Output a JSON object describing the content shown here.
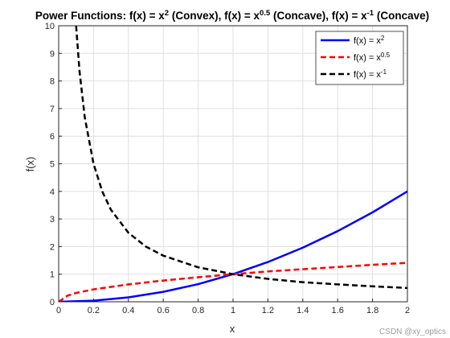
{
  "chart_data": {
    "type": "line",
    "title": {
      "p1": "Power Functions: f(x) = x",
      "s1": "2",
      "p2": " (Convex), f(x) = x",
      "s2": "0.5",
      "p3": " (Concave), f(x) = x",
      "s3": "-1",
      "p4": " (Concave)"
    },
    "xlabel": "x",
    "ylabel": "f(x)",
    "xlim": [
      0,
      2
    ],
    "ylim": [
      0,
      10
    ],
    "xticks": [
      "0",
      "0.2",
      "0.4",
      "0.6",
      "0.8",
      "1",
      "1.2",
      "1.4",
      "1.6",
      "1.8",
      "2"
    ],
    "yticks": [
      "0",
      "1",
      "2",
      "3",
      "4",
      "5",
      "6",
      "7",
      "8",
      "9",
      "10"
    ],
    "grid": true,
    "legend_position": "top-right",
    "series": [
      {
        "name": {
          "base": "f(x) = x",
          "sup": "2"
        },
        "color": "#0000ff",
        "style": "solid",
        "x": [
          0,
          0.2,
          0.4,
          0.6,
          0.8,
          1.0,
          1.2,
          1.4,
          1.6,
          1.8,
          2.0
        ],
        "y": [
          0,
          0.04,
          0.16,
          0.36,
          0.64,
          1.0,
          1.44,
          1.96,
          2.56,
          3.24,
          4.0
        ]
      },
      {
        "name": {
          "base": "f(x) = x",
          "sup": "0.5"
        },
        "color": "#ff0000",
        "style": "dashed",
        "x": [
          0,
          0.05,
          0.1,
          0.2,
          0.4,
          0.6,
          0.8,
          1.0,
          1.2,
          1.4,
          1.6,
          1.8,
          2.0
        ],
        "y": [
          0,
          0.22,
          0.32,
          0.45,
          0.63,
          0.77,
          0.89,
          1.0,
          1.1,
          1.18,
          1.26,
          1.34,
          1.41
        ]
      },
      {
        "name": {
          "base": "f(x) = x",
          "sup": "-1"
        },
        "color": "#000000",
        "style": "dashed",
        "x": [
          0.1,
          0.12,
          0.15,
          0.2,
          0.25,
          0.3,
          0.4,
          0.5,
          0.6,
          0.8,
          1.0,
          1.2,
          1.4,
          1.6,
          1.8,
          2.0
        ],
        "y": [
          10,
          8.33,
          6.67,
          5.0,
          4.0,
          3.33,
          2.5,
          2.0,
          1.67,
          1.25,
          1.0,
          0.83,
          0.71,
          0.63,
          0.56,
          0.5
        ]
      }
    ]
  },
  "watermark": "CSDN @xy_optics"
}
